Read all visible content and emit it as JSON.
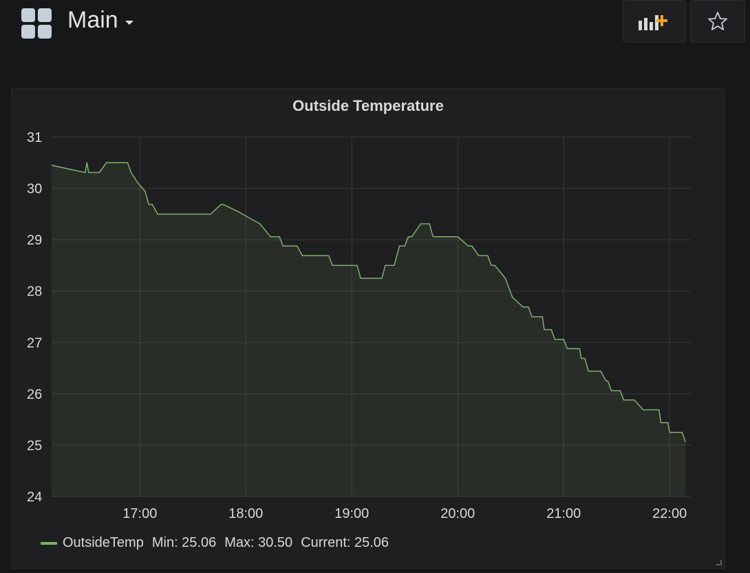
{
  "header": {
    "title": "Main"
  },
  "panel": {
    "title": "Outside Temperature"
  },
  "legend": {
    "series_name": "OutsideTemp",
    "min_label": "Min: 25.06",
    "max_label": "Max: 30.50",
    "current_label": "Current: 25.06"
  },
  "colors": {
    "series": "#7eb26d",
    "background": "#161719",
    "panel": "#1f1f21",
    "accent": "#f7a31e"
  },
  "chart_data": {
    "type": "area",
    "title": "Outside Temperature",
    "xlabel": "",
    "ylabel": "",
    "x_ticks": [
      "17:00",
      "18:00",
      "19:00",
      "20:00",
      "21:00",
      "22:00"
    ],
    "y_ticks": [
      24,
      25,
      26,
      27,
      28,
      29,
      30,
      31
    ],
    "xlim": [
      "16:10",
      "22:12"
    ],
    "ylim": [
      24,
      31
    ],
    "grid": true,
    "legend_position": "bottom-left",
    "series": [
      {
        "name": "OutsideTemp",
        "points": [
          [
            "16:10",
            30.45
          ],
          [
            "16:29",
            30.31
          ],
          [
            "16:30",
            30.5
          ],
          [
            "16:31",
            30.31
          ],
          [
            "16:37",
            30.31
          ],
          [
            "16:41",
            30.5
          ],
          [
            "16:53",
            30.5
          ],
          [
            "16:55",
            30.31
          ],
          [
            "16:59",
            30.1
          ],
          [
            "17:03",
            29.94
          ],
          [
            "17:05",
            29.69
          ],
          [
            "17:07",
            29.69
          ],
          [
            "17:10",
            29.5
          ],
          [
            "17:40",
            29.5
          ],
          [
            "17:46",
            29.69
          ],
          [
            "17:47",
            29.69
          ],
          [
            "17:55",
            29.56
          ],
          [
            "18:08",
            29.31
          ],
          [
            "18:14",
            29.06
          ],
          [
            "18:19",
            29.06
          ],
          [
            "18:21",
            28.88
          ],
          [
            "18:29",
            28.88
          ],
          [
            "18:32",
            28.69
          ],
          [
            "18:47",
            28.69
          ],
          [
            "18:49",
            28.5
          ],
          [
            "19:03",
            28.5
          ],
          [
            "19:05",
            28.25
          ],
          [
            "19:17",
            28.25
          ],
          [
            "19:19",
            28.5
          ],
          [
            "19:24",
            28.5
          ],
          [
            "19:27",
            28.88
          ],
          [
            "19:30",
            28.88
          ],
          [
            "19:32",
            29.06
          ],
          [
            "19:34",
            29.06
          ],
          [
            "19:39",
            29.31
          ],
          [
            "19:44",
            29.31
          ],
          [
            "19:46",
            29.06
          ],
          [
            "20:00",
            29.06
          ],
          [
            "20:06",
            28.88
          ],
          [
            "20:08",
            28.88
          ],
          [
            "20:12",
            28.69
          ],
          [
            "20:17",
            28.69
          ],
          [
            "20:19",
            28.5
          ],
          [
            "20:21",
            28.5
          ],
          [
            "20:27",
            28.25
          ],
          [
            "20:31",
            27.88
          ],
          [
            "20:37",
            27.69
          ],
          [
            "20:40",
            27.69
          ],
          [
            "20:42",
            27.5
          ],
          [
            "20:48",
            27.5
          ],
          [
            "20:49",
            27.25
          ],
          [
            "20:53",
            27.25
          ],
          [
            "20:55",
            27.06
          ],
          [
            "21:00",
            27.06
          ],
          [
            "21:02",
            26.88
          ],
          [
            "21:09",
            26.88
          ],
          [
            "21:10",
            26.69
          ],
          [
            "21:12",
            26.69
          ],
          [
            "21:14",
            26.44
          ],
          [
            "21:21",
            26.44
          ],
          [
            "21:24",
            26.25
          ],
          [
            "21:25",
            26.25
          ],
          [
            "21:27",
            26.06
          ],
          [
            "21:32",
            26.06
          ],
          [
            "21:34",
            25.88
          ],
          [
            "21:40",
            25.88
          ],
          [
            "21:45",
            25.69
          ],
          [
            "21:54",
            25.69
          ],
          [
            "21:55",
            25.44
          ],
          [
            "21:59",
            25.44
          ],
          [
            "22:00",
            25.25
          ],
          [
            "22:07",
            25.25
          ],
          [
            "22:09",
            25.06
          ]
        ]
      }
    ]
  }
}
